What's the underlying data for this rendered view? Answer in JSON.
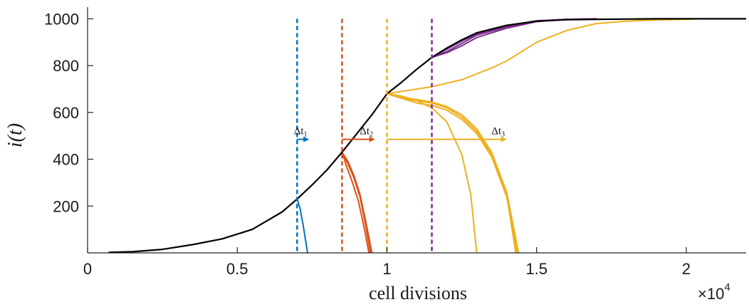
{
  "chart_data": {
    "type": "line",
    "title": "",
    "xlabel": "cell divisions",
    "ylabel": "i(t)",
    "x_multiplier": "×10",
    "x_multiplier_exp": "4",
    "xlim": [
      0,
      22000
    ],
    "ylim": [
      0,
      1050
    ],
    "x_ticks": [
      0,
      5000,
      10000,
      15000,
      20000
    ],
    "x_tick_labels": [
      "0",
      "0.5",
      "1",
      "1.5",
      "2"
    ],
    "y_ticks": [
      200,
      400,
      600,
      800,
      1000
    ],
    "y_tick_labels": [
      "200",
      "400",
      "600",
      "800",
      "1000"
    ],
    "grid": false,
    "colors": {
      "main": "#000000",
      "blue": "#0072BD",
      "red": "#D95319",
      "yellow": "#EDB120",
      "purple": "#7E2F8E"
    },
    "main_series": {
      "name": "",
      "color": "#000000",
      "x": [
        700,
        1500,
        2500,
        3500,
        4500,
        5500,
        6500,
        7000,
        7500,
        8000,
        8500,
        9000,
        9500,
        10000,
        10500,
        11000,
        11500,
        12000,
        12500,
        13000,
        14000,
        15000,
        16000,
        17000,
        18000,
        19000,
        20000,
        21000,
        22000
      ],
      "y": [
        2,
        5,
        15,
        35,
        60,
        100,
        175,
        230,
        290,
        355,
        430,
        510,
        590,
        680,
        730,
        785,
        835,
        875,
        910,
        940,
        972,
        990,
        996,
        998,
        999,
        1000,
        1000,
        1000,
        1000
      ]
    },
    "vertical_markers": [
      {
        "x": 7000,
        "color": "#0072BD",
        "style": "dashed"
      },
      {
        "x": 8500,
        "color": "#D95319",
        "style": "dashed"
      },
      {
        "x": 10000,
        "color": "#EDB120",
        "style": "dashed"
      },
      {
        "x": 11500,
        "color": "#7E2F8E",
        "style": "dashed"
      }
    ],
    "arrows": [
      {
        "label": "Δt",
        "sub": "1",
        "color": "#0072BD",
        "x_start": 7000,
        "x_end": 7400,
        "y": 485
      },
      {
        "label": "Δt",
        "sub": "2",
        "color": "#D95319",
        "x_start": 8500,
        "x_end": 9600,
        "y": 485
      },
      {
        "label": "Δt",
        "sub": "3",
        "color": "#EDB120",
        "x_start": 10000,
        "x_end": 14000,
        "y": 485
      }
    ],
    "branches": [
      {
        "color": "#0072BD",
        "x": [
          7000,
          7100,
          7200,
          7300,
          7350
        ],
        "y": [
          230,
          190,
          120,
          40,
          0
        ]
      },
      {
        "color": "#D95319",
        "x": [
          8500,
          8700,
          8900,
          9100,
          9300,
          9450
        ],
        "y": [
          430,
          380,
          320,
          240,
          110,
          0
        ]
      },
      {
        "color": "#D95319",
        "x": [
          8500,
          8700,
          8900,
          9100,
          9300,
          9500
        ],
        "y": [
          430,
          390,
          330,
          250,
          130,
          0
        ]
      },
      {
        "color": "#D95319",
        "x": [
          8500,
          8650,
          8850,
          9050,
          9250,
          9400
        ],
        "y": [
          430,
          370,
          300,
          220,
          100,
          0
        ]
      },
      {
        "color": "#EDB120",
        "x": [
          10000,
          10500,
          11000,
          11500,
          12000,
          12500,
          12800,
          13000
        ],
        "y": [
          680,
          660,
          650,
          620,
          560,
          420,
          250,
          0
        ]
      },
      {
        "color": "#EDB120",
        "x": [
          10000,
          10500,
          11000,
          11500,
          12000,
          12500,
          13000,
          13500,
          14000,
          14300
        ],
        "y": [
          680,
          670,
          650,
          640,
          620,
          580,
          520,
          420,
          250,
          0
        ]
      },
      {
        "color": "#EDB120",
        "x": [
          10000,
          10500,
          11000,
          11500,
          12000,
          12500,
          13000,
          13500,
          14000,
          14400
        ],
        "y": [
          680,
          665,
          655,
          645,
          625,
          590,
          530,
          430,
          260,
          0
        ]
      },
      {
        "color": "#EDB120",
        "x": [
          10000,
          10500,
          11000,
          11500,
          12000,
          12500,
          13000,
          13500,
          14000,
          14350
        ],
        "y": [
          680,
          660,
          640,
          630,
          610,
          570,
          510,
          410,
          240,
          0
        ]
      },
      {
        "color": "#EDB120",
        "x": [
          10000,
          10500,
          11000,
          11500,
          12000,
          12500,
          13000,
          13500,
          14000,
          15000,
          16000,
          17000,
          18000,
          19000,
          20000,
          20500
        ],
        "y": [
          680,
          690,
          700,
          710,
          725,
          740,
          765,
          790,
          820,
          900,
          950,
          980,
          990,
          995,
          998,
          1000
        ]
      },
      {
        "color": "#7E2F8E",
        "x": [
          11500,
          12000,
          12500,
          13000,
          14000,
          15000,
          16000,
          17000
        ],
        "y": [
          835,
          860,
          895,
          930,
          965,
          990,
          998,
          1000
        ]
      },
      {
        "color": "#7E2F8E",
        "x": [
          11500,
          12000,
          12500,
          13000,
          14000,
          15000,
          16000,
          17000
        ],
        "y": [
          835,
          870,
          905,
          935,
          970,
          992,
          998,
          1000
        ]
      },
      {
        "color": "#7E2F8E",
        "x": [
          11500,
          12000,
          12500,
          13000,
          14000,
          15000,
          16000,
          17000
        ],
        "y": [
          835,
          855,
          885,
          920,
          960,
          988,
          997,
          1000
        ]
      }
    ]
  }
}
